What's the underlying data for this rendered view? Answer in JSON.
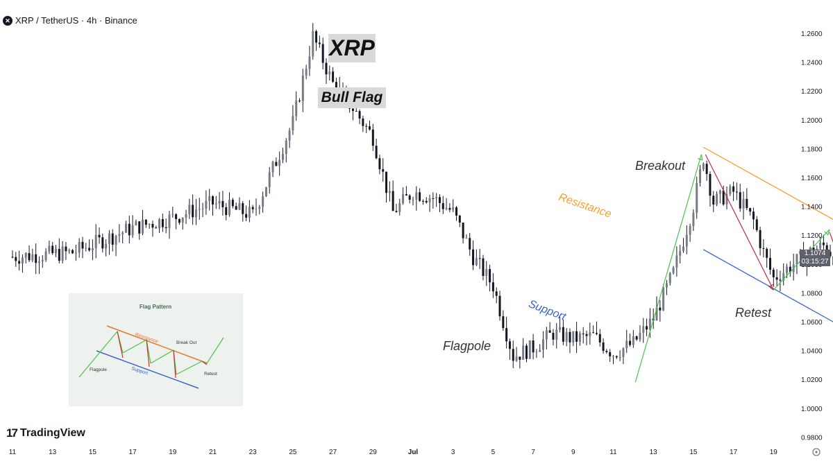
{
  "header": {
    "symbol_icon": "xrp-logo-icon",
    "title": "XRP / TetherUS · 4h · Binance"
  },
  "badges": {
    "title": "XRP",
    "subtitle": "Bull Flag"
  },
  "annotations": {
    "breakout": "Breakout",
    "retest": "Retest",
    "flagpole": "Flagpole",
    "resistance": "Resistance",
    "support": "Support"
  },
  "price_label": {
    "price": "1.1074",
    "countdown": "03:15:27"
  },
  "brand": {
    "icon": "tradingview-logo-icon",
    "name": "TradingView"
  },
  "colors": {
    "candle": "#131722",
    "candle_up": "#787b86",
    "resistance": "#f0a030",
    "support": "#3a63c4",
    "up_arrow": "#4cc04c",
    "down_arrow": "#c02a4a"
  },
  "inset": {
    "title": "Flag Pattern",
    "labels": {
      "resistance": "Resistance",
      "support": "Support",
      "breakout": "Break Out",
      "flagpole": "Flagpole",
      "retest": "Retest"
    }
  },
  "chart_data": {
    "type": "candlestick",
    "title": "",
    "x_ticks": [
      "11",
      "13",
      "15",
      "17",
      "19",
      "21",
      "23",
      "25",
      "27",
      "29",
      "Jul",
      "3",
      "5",
      "7",
      "9",
      "11",
      "13",
      "15",
      "17",
      "19"
    ],
    "y_ticks": [
      "1.2600",
      "1.2400",
      "1.2200",
      "1.2000",
      "1.1800",
      "1.1600",
      "1.1400",
      "1.1200",
      "1.1000",
      "1.0800",
      "1.0600",
      "1.0400",
      "1.0200",
      "1.0000",
      "0.9800"
    ],
    "ylim": [
      0.98,
      1.26
    ],
    "last_price": 1.1074,
    "close_path": [
      {
        "x": 0,
        "y": 1.105
      },
      {
        "x": 3,
        "y": 1.108
      },
      {
        "x": 6,
        "y": 1.125
      },
      {
        "x": 8,
        "y": 1.132
      },
      {
        "x": 10,
        "y": 1.142
      },
      {
        "x": 12,
        "y": 1.134
      },
      {
        "x": 14,
        "y": 1.198
      },
      {
        "x": 15,
        "y": 1.258
      },
      {
        "x": 16,
        "y": 1.225
      },
      {
        "x": 17,
        "y": 1.208
      },
      {
        "x": 18,
        "y": 1.188
      },
      {
        "x": 19,
        "y": 1.136
      },
      {
        "x": 20,
        "y": 1.15
      },
      {
        "x": 21,
        "y": 1.146
      },
      {
        "x": 22,
        "y": 1.136
      },
      {
        "x": 23,
        "y": 1.105
      },
      {
        "x": 24,
        "y": 1.085
      },
      {
        "x": 25,
        "y": 1.036
      },
      {
        "x": 26,
        "y": 1.042
      },
      {
        "x": 27,
        "y": 1.052
      },
      {
        "x": 28,
        "y": 1.048
      },
      {
        "x": 29,
        "y": 1.05
      },
      {
        "x": 30,
        "y": 1.038
      },
      {
        "x": 31,
        "y": 1.045
      },
      {
        "x": 32,
        "y": 1.062
      },
      {
        "x": 33,
        "y": 1.094
      },
      {
        "x": 34,
        "y": 1.14
      },
      {
        "x": 34.5,
        "y": 1.174
      },
      {
        "x": 35,
        "y": 1.143
      },
      {
        "x": 36,
        "y": 1.15
      },
      {
        "x": 37,
        "y": 1.13
      },
      {
        "x": 37.5,
        "y": 1.108
      },
      {
        "x": 38,
        "y": 1.09
      },
      {
        "x": 39,
        "y": 1.1
      },
      {
        "x": 40,
        "y": 1.11
      },
      {
        "x": 40.6,
        "y": 1.113
      },
      {
        "x": 41.5,
        "y": 1.095
      },
      {
        "x": 42,
        "y": 1.075
      },
      {
        "x": 42.6,
        "y": 1.068
      },
      {
        "x": 43.2,
        "y": 1.112
      },
      {
        "x": 43.8,
        "y": 1.124
      },
      {
        "x": 44.4,
        "y": 1.107
      }
    ],
    "lines": [
      {
        "name": "Resistance",
        "from": {
          "x": 34.5,
          "y": 1.181
        },
        "to": {
          "x": 44.2,
          "y": 1.106
        }
      },
      {
        "name": "Support",
        "from": {
          "x": 34.5,
          "y": 1.11
        },
        "to": {
          "x": 44.2,
          "y": 1.035
        }
      }
    ]
  }
}
